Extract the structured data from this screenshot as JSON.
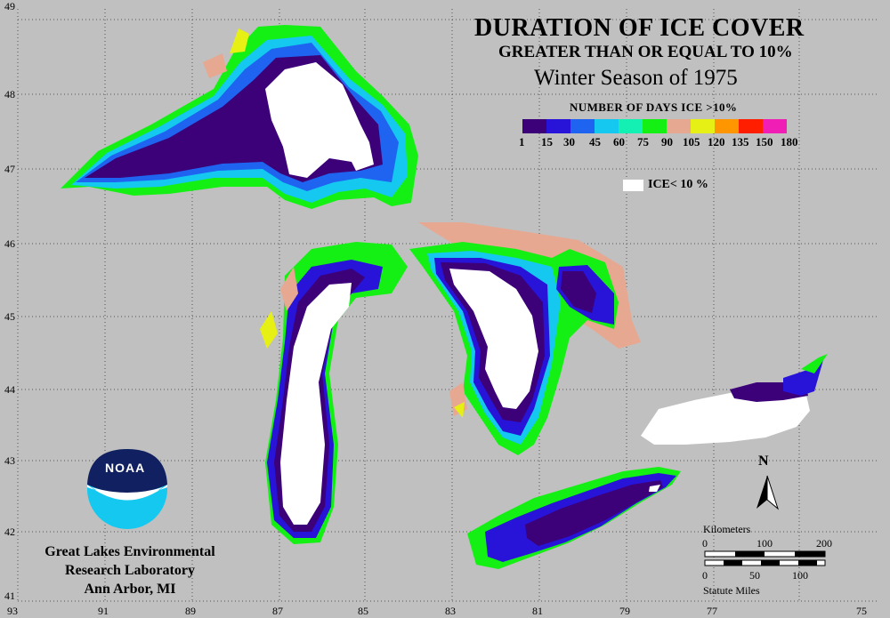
{
  "title": {
    "line1": "DURATION OF ICE COVER",
    "line2": "GREATER THAN OR EQUAL TO 10%",
    "line3": "Winter Season of 1975"
  },
  "legend": {
    "title": "NUMBER OF DAYS ICE >10%",
    "colors": [
      "#3c0078",
      "#2814d8",
      "#1e64f0",
      "#14c8f0",
      "#14f0b4",
      "#14f014",
      "#e6a890",
      "#e6f014",
      "#ff9600",
      "#ff1e00",
      "#f01eb4"
    ],
    "ticks": [
      "1",
      "15",
      "30",
      "45",
      "60",
      "75",
      "90",
      "105",
      "120",
      "135",
      "150",
      "180"
    ],
    "ice_label": "ICE< 10 %"
  },
  "organization": {
    "line1": "Great Lakes Environmental",
    "line2": "Research Laboratory",
    "line3": "Ann Arbor, MI",
    "logo_text": "NOAA"
  },
  "latitudes": [
    "49",
    "48",
    "47",
    "46",
    "45",
    "44",
    "43",
    "42",
    "41"
  ],
  "longitudes": [
    "93",
    "91",
    "89",
    "87",
    "85",
    "83",
    "81",
    "79",
    "77",
    "75"
  ],
  "scale": {
    "km_label": "Kilometers",
    "km_ticks": [
      "0",
      "100",
      "200"
    ],
    "mi_ticks": [
      "0",
      "50",
      "100"
    ],
    "mi_label": "Statute Miles"
  },
  "north": "N"
}
